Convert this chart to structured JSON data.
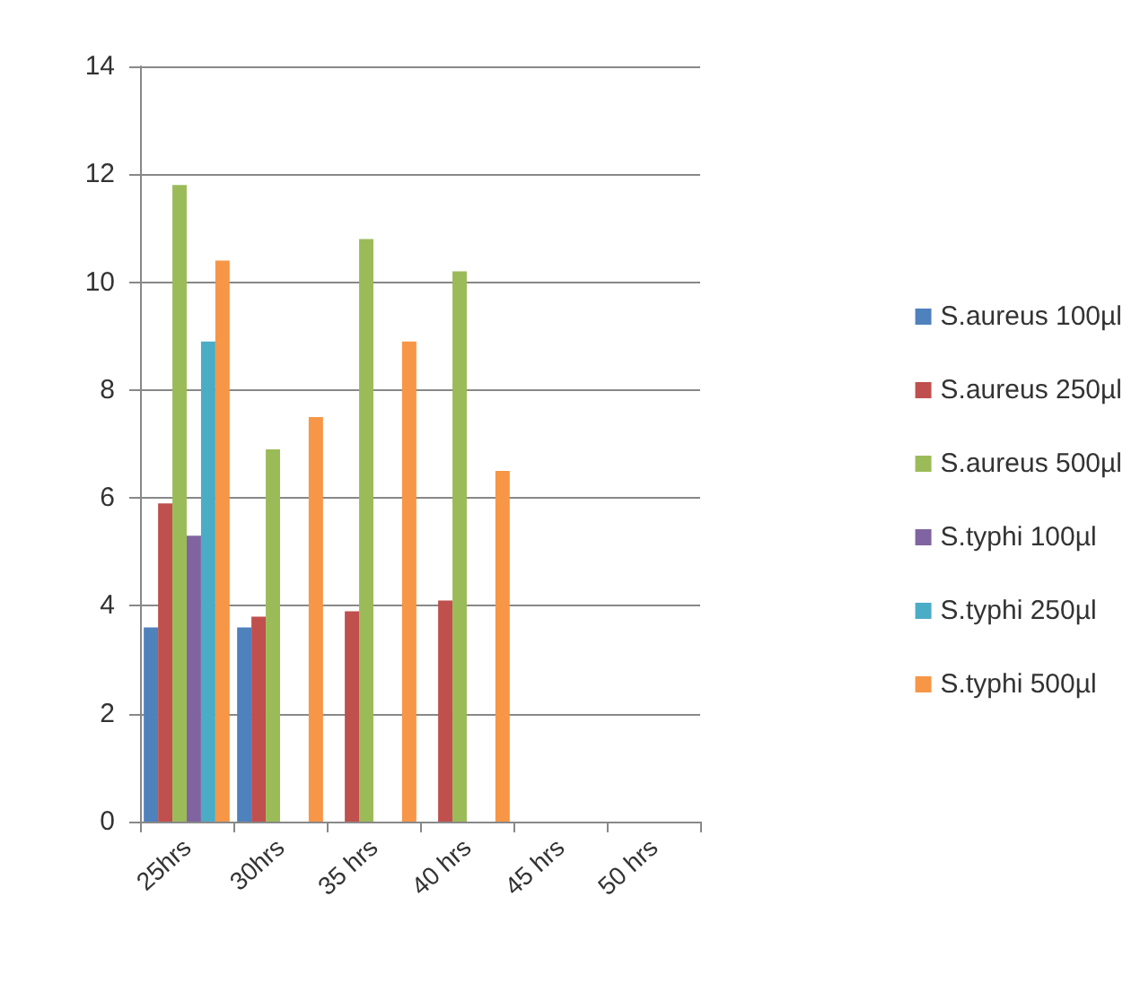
{
  "chart_data": {
    "type": "bar",
    "categories": [
      "25hrs",
      "30hrs",
      "35 hrs",
      "40 hrs",
      "45 hrs",
      "50 hrs"
    ],
    "series": [
      {
        "name": "S.aureus 100µl",
        "color": "#4f81bd",
        "values": [
          3.6,
          3.6,
          null,
          null,
          null,
          null
        ]
      },
      {
        "name": "S.aureus 250µl",
        "color": "#c0504d",
        "values": [
          5.9,
          3.8,
          3.9,
          4.1,
          null,
          null
        ]
      },
      {
        "name": "S.aureus 500µl",
        "color": "#9bbb59",
        "values": [
          11.8,
          6.9,
          10.8,
          10.2,
          null,
          null
        ]
      },
      {
        "name": "S.typhi 100µl",
        "color": "#8064a2",
        "values": [
          5.3,
          null,
          null,
          null,
          null,
          null
        ]
      },
      {
        "name": "S.typhi 250µl",
        "color": "#4bacc6",
        "values": [
          8.9,
          null,
          null,
          null,
          null,
          null
        ]
      },
      {
        "name": "S.typhi 500µl",
        "color": "#f79646",
        "values": [
          10.4,
          7.5,
          8.9,
          6.5,
          null,
          null
        ]
      }
    ],
    "ylim": [
      0,
      14
    ],
    "yticks": [
      0,
      2,
      4,
      6,
      8,
      10,
      12,
      14
    ],
    "grid": "y",
    "legend": "right"
  }
}
